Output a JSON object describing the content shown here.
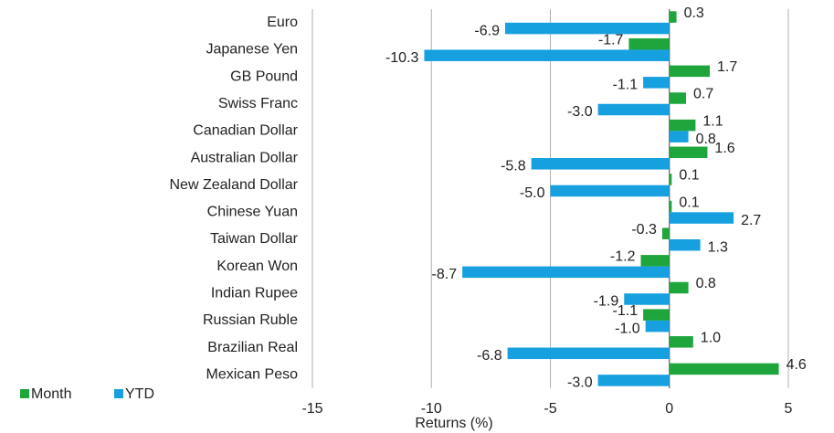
{
  "chart_data": {
    "type": "bar",
    "orientation": "horizontal",
    "categories": [
      "Euro",
      "Japanese Yen",
      "GB Pound",
      "Swiss Franc",
      "Canadian Dollar",
      "Australian Dollar",
      "New Zealand Dollar",
      "Chinese Yuan",
      "Taiwan Dollar",
      "Korean Won",
      "Indian Rupee",
      "Russian Ruble",
      "Brazilian Real",
      "Mexican Peso"
    ],
    "series": [
      {
        "name": "Month",
        "color": "#1ea53c",
        "values": [
          0.3,
          -1.7,
          1.7,
          0.7,
          1.1,
          1.6,
          0.1,
          0.1,
          -0.3,
          -1.2,
          0.8,
          -1.1,
          1.0,
          4.6
        ],
        "value_labels": [
          "0.3",
          "-1.7",
          "1.7",
          "0.7",
          "1.1",
          "1.6",
          "0.1",
          "0.1",
          "-0.3",
          "-1.2",
          "0.8",
          "-1.1",
          "1.0",
          "4.6"
        ]
      },
      {
        "name": "YTD",
        "color": "#16a0e0",
        "values": [
          -6.9,
          -10.3,
          -1.1,
          -3.0,
          0.8,
          -5.8,
          -5.0,
          2.7,
          1.3,
          -8.7,
          -1.9,
          -1.0,
          -6.8,
          -3.0
        ],
        "value_labels": [
          "-6.9",
          "-10.3",
          "-1.1",
          "-3.0",
          "0.8",
          "-5.8",
          "-5.0",
          "2.7",
          "1.3",
          "-8.7",
          "-1.9",
          "-1.0",
          "-6.8",
          "-3.0"
        ]
      }
    ],
    "xlabel": "Returns (%)",
    "xlim": [
      -15,
      5
    ],
    "xticks": [
      -15,
      -10,
      -5,
      0,
      5
    ],
    "grid": true,
    "legend": "bottom-left"
  }
}
